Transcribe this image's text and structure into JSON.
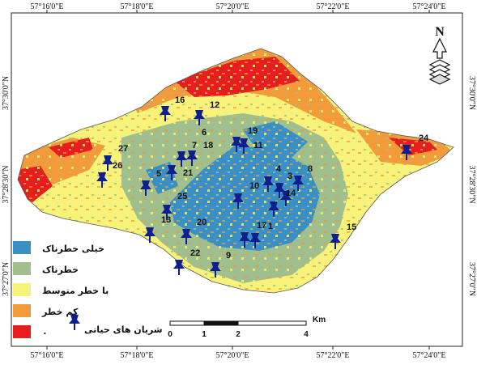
{
  "graticule": {
    "top": [
      "57°16'0\"E",
      "57°18'0\"E",
      "57°20'0\"E",
      "57°22'0\"E",
      "57°24'0\"E"
    ],
    "bottom": [
      "57°16'0\"E",
      "57°18'0\"E",
      "57°20'0\"E",
      "57°22'0\"E",
      "57°24'0\"E"
    ],
    "left": [
      "37°30'0\"N",
      "37°28'30\"N",
      "37°27'0\"N"
    ],
    "right": [
      "37°30'0\"N",
      "37°28'30\"N",
      "37°27'0\"N"
    ]
  },
  "north_arrow": {
    "letter": "N"
  },
  "legend": {
    "classes": [
      {
        "label": "خیلی خطرناک",
        "color": "#3a8fc4"
      },
      {
        "label": "خطرناک",
        "color": "#9fbf8e"
      },
      {
        "label": "با خطر متوسط",
        "color": "#f7f37a"
      },
      {
        "label": "کم خطر",
        "color": "#f39a3a"
      },
      {
        "label": "۰",
        "color": "#e81d1d"
      }
    ],
    "marker_label": "شریان های حیاتی"
  },
  "scale_bar": {
    "ticks": [
      "0",
      "1",
      "2",
      "4"
    ],
    "unit": "Km"
  },
  "site_labels": [
    "1",
    "3",
    "4",
    "5",
    "6",
    "7",
    "8",
    "9",
    "10",
    "11",
    "12",
    "13",
    "14",
    "15",
    "16",
    "17",
    "18",
    "19",
    "20",
    "21",
    "22",
    "24",
    "25",
    "26",
    "27"
  ],
  "colors": {
    "very_high": "#3a8fc4",
    "high": "#9fbf8e",
    "medium": "#f7f37a",
    "low": "#f39a3a",
    "zero": "#e81d1d",
    "marker": "#0f1f8f"
  }
}
